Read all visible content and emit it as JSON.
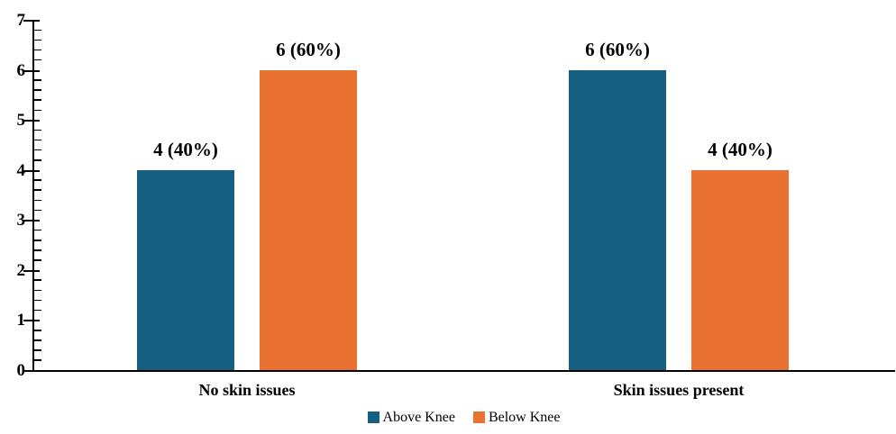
{
  "chart_data": {
    "type": "bar",
    "categories": [
      "No skin issues",
      "Skin issues present"
    ],
    "series": [
      {
        "name": "Above Knee",
        "color": "#156082",
        "values": [
          4,
          6
        ],
        "labels": [
          "4 (40%)",
          "6 (60%)"
        ]
      },
      {
        "name": "Below Knee",
        "color": "#E97132",
        "values": [
          6,
          4
        ],
        "labels": [
          "6 (60%)",
          "4 (40%)"
        ]
      }
    ],
    "ylim": [
      0,
      7
    ],
    "y_major_ticks": [
      "0",
      "1",
      "2",
      "3",
      "4",
      "5",
      "6",
      "7"
    ],
    "y_minor_step": 0.2,
    "xlabel": "",
    "ylabel": "",
    "grid": false,
    "legend_position": "bottom-center"
  }
}
